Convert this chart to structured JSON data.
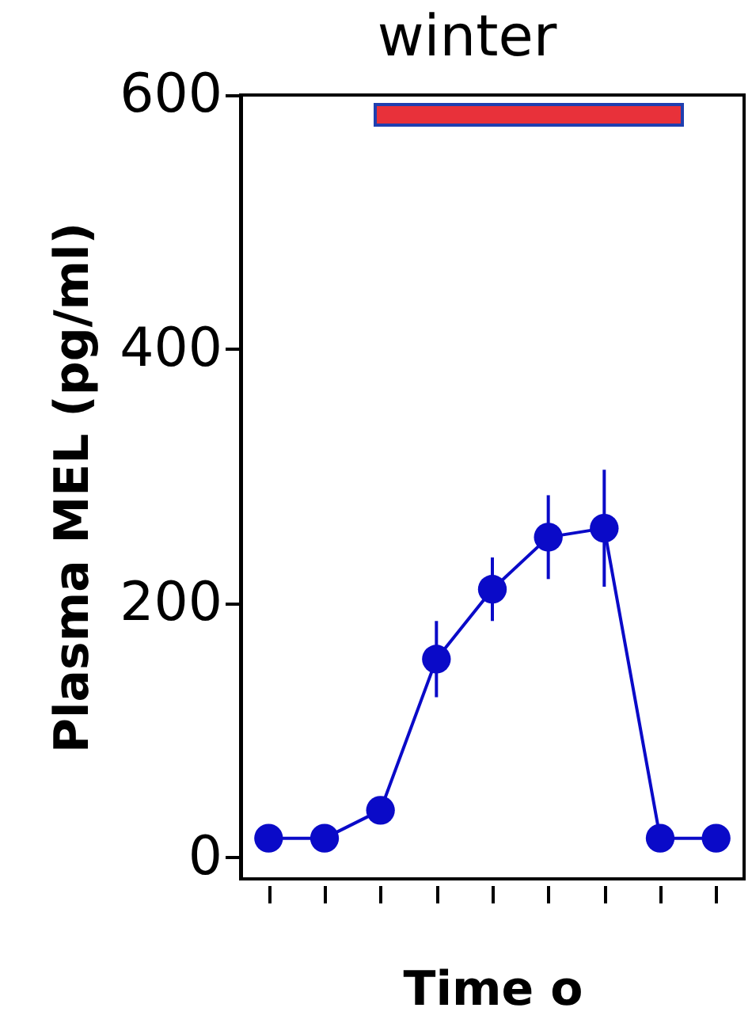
{
  "chart_data": {
    "type": "line",
    "title": "winter",
    "xlabel": "Time o",
    "ylabel": "Plasma MEL (pg/ml)",
    "categories": [
      null,
      null,
      null,
      null,
      null,
      null,
      null,
      null,
      null
    ],
    "series": [
      {
        "color": "#0a0ac8",
        "values": [
          15,
          15,
          37,
          156,
          211,
          252,
          259,
          15,
          15
        ],
        "errors": [
          null,
          null,
          null,
          30,
          25,
          33,
          46,
          null,
          null
        ]
      }
    ],
    "ylim": [
      -17,
      600
    ],
    "yticks": [
      0,
      200,
      400,
      600
    ],
    "marker": "circle",
    "line_style": "solid"
  }
}
